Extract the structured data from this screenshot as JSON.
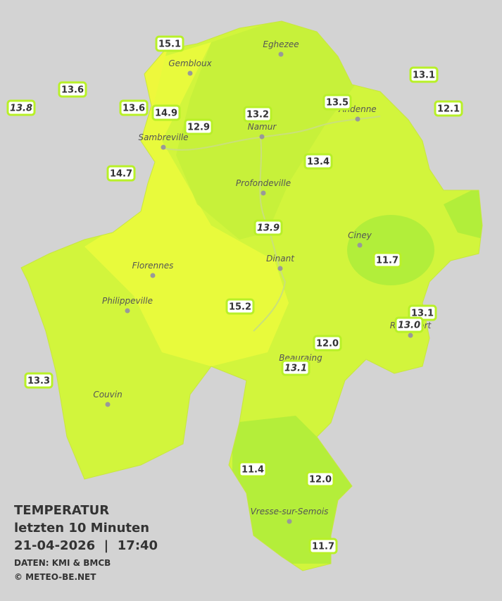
{
  "legend": {
    "title": "TEMPERATUR",
    "period": "letzten 10 Minuten",
    "datetime": "21-04-2026  |  17:40",
    "source": "DATEN: KMI & BMCB",
    "copyright": "© METEO-BE.NET"
  },
  "cities": [
    "Eghezee",
    "Gembloux",
    "Andenne",
    "Namur",
    "Sambreville",
    "Profondeville",
    "Ciney",
    "Dinant",
    "Florennes",
    "Philippeville",
    "Rochefort",
    "Beauraing",
    "Couvin",
    "Vresse-sur-Semois"
  ],
  "stations": [
    {
      "value": "15.1"
    },
    {
      "value": "13.6"
    },
    {
      "value": "13.8",
      "italic": true
    },
    {
      "value": "13.6"
    },
    {
      "value": "14.9"
    },
    {
      "value": "12.9"
    },
    {
      "value": "13.2"
    },
    {
      "value": "13.5"
    },
    {
      "value": "13.1"
    },
    {
      "value": "12.1"
    },
    {
      "value": "14.7"
    },
    {
      "value": "13.4"
    },
    {
      "value": "13.9",
      "italic": true
    },
    {
      "value": "11.7"
    },
    {
      "value": "15.2"
    },
    {
      "value": "13.1"
    },
    {
      "value": "13.0",
      "italic": true
    },
    {
      "value": "12.0"
    },
    {
      "value": "13.1",
      "italic": true
    },
    {
      "value": "13.3"
    },
    {
      "value": "11.4"
    },
    {
      "value": "12.0"
    },
    {
      "value": "11.7"
    }
  ]
}
